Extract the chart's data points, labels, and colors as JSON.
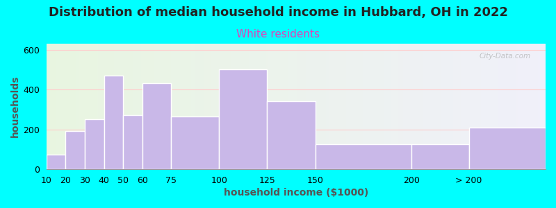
{
  "title": "Distribution of median household income in Hubbard, OH in 2022",
  "subtitle": "White residents",
  "xlabel": "household income ($1000)",
  "ylabel": "households",
  "bar_color": "#c9b8e8",
  "bar_edge_color": "#ffffff",
  "background_outer": "#00ffff",
  "bin_edges": [
    10,
    20,
    30,
    40,
    50,
    60,
    75,
    100,
    125,
    150,
    200,
    230,
    270
  ],
  "values": [
    75,
    190,
    250,
    470,
    270,
    430,
    265,
    500,
    340,
    125,
    125,
    210
  ],
  "xtick_positions": [
    10,
    20,
    30,
    40,
    50,
    60,
    75,
    100,
    125,
    150,
    200,
    230
  ],
  "xtick_labels": [
    "10",
    "20",
    "30",
    "40",
    "50",
    "60",
    "75",
    "100",
    "125",
    "150",
    "200",
    "> 200"
  ],
  "ylim": [
    0,
    630
  ],
  "xlim": [
    10,
    270
  ],
  "yticks": [
    0,
    200,
    400,
    600
  ],
  "title_fontsize": 13,
  "subtitle_fontsize": 11,
  "subtitle_color": "#dd44bb",
  "axis_label_fontsize": 10,
  "tick_fontsize": 9,
  "watermark_text": "City-Data.com",
  "bg_gradient_left": "#e8f5e0",
  "bg_gradient_right": "#f0f0fa",
  "grid_color": "#ffcccc",
  "spine_color": "#999999"
}
